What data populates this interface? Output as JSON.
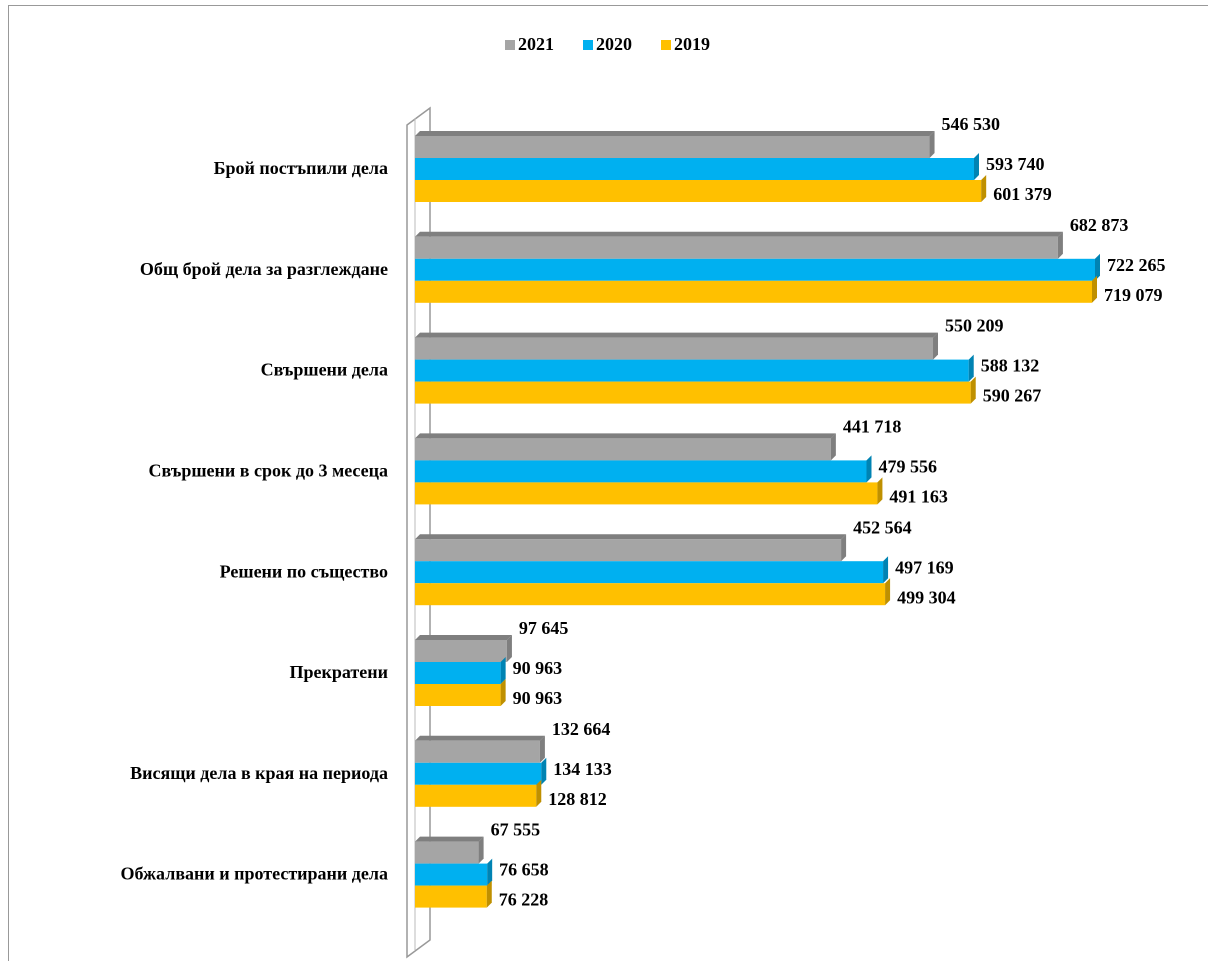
{
  "chart_data": {
    "type": "bar",
    "orientation": "horizontal",
    "categories": [
      "Брой постъпили дела",
      "Общ брой дела за разглеждане",
      "Свършени дела",
      "Свършени в срок до 3 месеца",
      "Решени по същество",
      "Прекратени",
      "Висящи дела в края на периода",
      "Обжалвани и протестирани дела"
    ],
    "series": [
      {
        "name": "2021",
        "color": "#a5a5a5",
        "side": "#7f7f7f",
        "values": [
          546530,
          682873,
          550209,
          441718,
          452564,
          97645,
          132664,
          67555
        ],
        "value_labels": [
          "546 530",
          "682 873",
          "550 209",
          "441 718",
          "452 564",
          "97 645",
          "132 664",
          "67 555"
        ]
      },
      {
        "name": "2020",
        "color": "#00b0f0",
        "side": "#0083b3",
        "values": [
          593740,
          722265,
          588132,
          479556,
          497169,
          90963,
          134133,
          76658
        ],
        "value_labels": [
          "593 740",
          "722 265",
          "588 132",
          "479 556",
          "497 169",
          "90 963",
          "134 133",
          "76 658"
        ]
      },
      {
        "name": "2019",
        "color": "#ffc000",
        "side": "#bf9000",
        "values": [
          601379,
          719079,
          590267,
          491163,
          499304,
          90963,
          128812,
          76228
        ],
        "value_labels": [
          "601 379",
          "719 079",
          "590 267",
          "491 163",
          "499 304",
          "90 963",
          "128 812",
          "76 228"
        ]
      }
    ],
    "legend": "top"
  }
}
